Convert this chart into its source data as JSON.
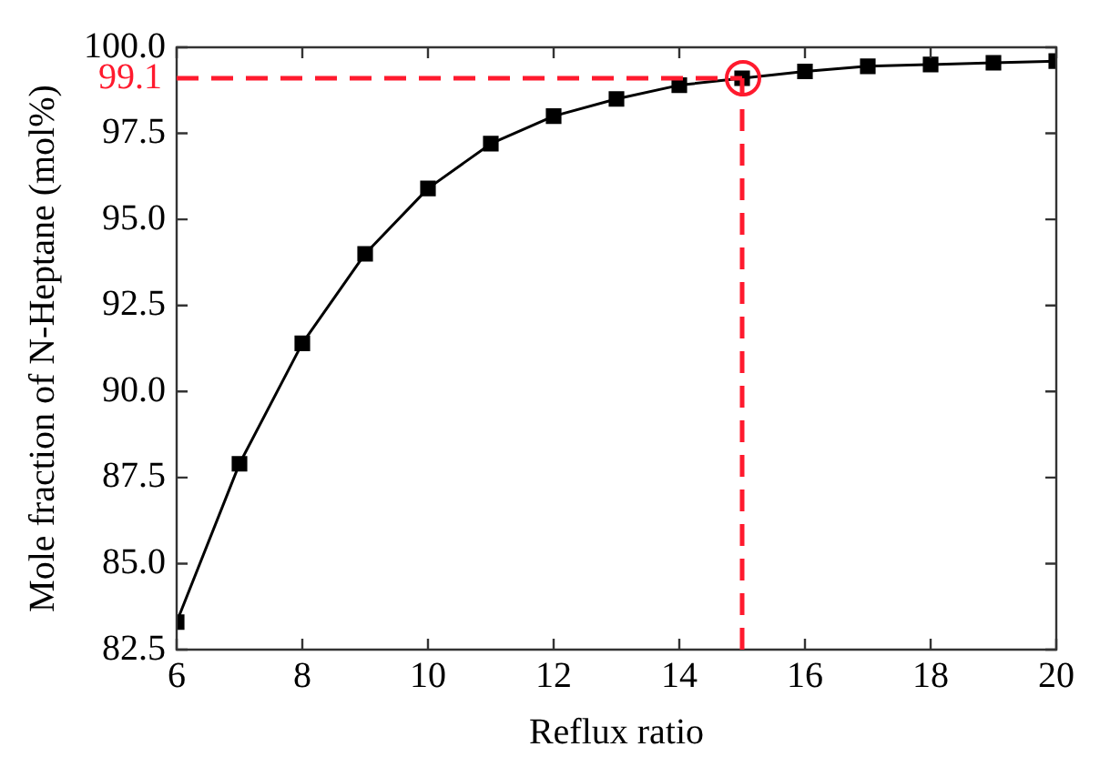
{
  "chart_data": {
    "type": "line",
    "xlabel": "Reflux ratio",
    "ylabel": "Mole fraction of N-Heptane (mol%)",
    "x": [
      6,
      7,
      8,
      9,
      10,
      11,
      12,
      13,
      14,
      15,
      16,
      17,
      18,
      19,
      20
    ],
    "series": [
      {
        "color": "#000000",
        "values": [
          83.3,
          87.9,
          91.4,
          94.0,
          95.9,
          97.2,
          98.0,
          98.5,
          98.9,
          99.1,
          99.3,
          99.45,
          99.5,
          99.55,
          99.6
        ]
      }
    ],
    "xlim": [
      6,
      20
    ],
    "xticks": [
      6,
      8,
      10,
      12,
      14,
      16,
      18,
      20
    ],
    "ylim": [
      82.5,
      100
    ],
    "yticks": [
      {
        "value": 82.5,
        "label": "82.5"
      },
      {
        "value": 85,
        "label": "85.0"
      },
      {
        "value": 87.5,
        "label": "87.5"
      },
      {
        "value": 90,
        "label": "90.0"
      },
      {
        "value": 92.5,
        "label": "92.5"
      },
      {
        "value": 95,
        "label": "95.0"
      },
      {
        "value": 97.5,
        "label": "97.5"
      },
      {
        "value": 100,
        "label": "100.0"
      }
    ],
    "ref_lines": [
      {
        "axis": "y",
        "value": 99.1,
        "label": "99.1",
        "color": "#ff1a2e",
        "line_style": "dashed"
      },
      {
        "axis": "x",
        "value": 15,
        "color": "#ff1a2e",
        "line_style": "dashed"
      }
    ],
    "grid": false,
    "legend": false,
    "marker": "square",
    "line_style": "solid"
  }
}
